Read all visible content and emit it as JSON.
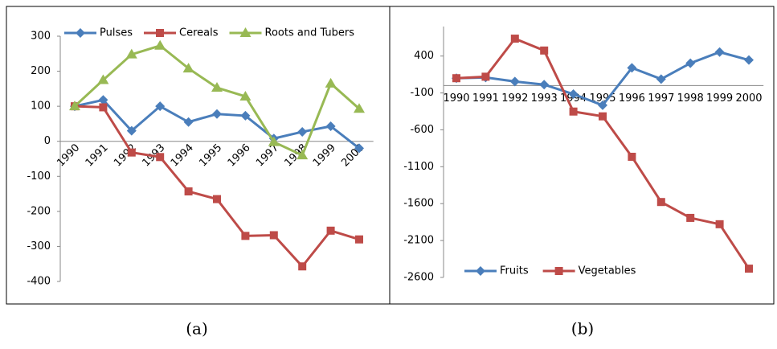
{
  "chart_data": [
    {
      "type": "line",
      "caption": "(a)",
      "categories": [
        "1990",
        "1991",
        "1992",
        "1993",
        "1994",
        "1995",
        "1996",
        "1997",
        "1998",
        "1999",
        "2000"
      ],
      "series": [
        {
          "name": "Pulses",
          "color": "#4a7ebb",
          "marker": "diamond",
          "values": [
            100,
            118,
            30,
            100,
            55,
            78,
            73,
            8,
            27,
            43,
            -20
          ]
        },
        {
          "name": "Cereals",
          "color": "#be4b48",
          "marker": "square",
          "values": [
            100,
            97,
            -32,
            -45,
            -143,
            -165,
            -270,
            -268,
            -357,
            -255,
            -280
          ]
        },
        {
          "name": "Roots and Tubers",
          "color": "#98b954",
          "marker": "triangle",
          "values": [
            100,
            175,
            248,
            273,
            208,
            153,
            128,
            -2,
            -40,
            165,
            93
          ]
        }
      ],
      "ylim": [
        -400,
        300
      ],
      "yticks": [
        -400,
        -300,
        -200,
        -100,
        0,
        100,
        200,
        300
      ],
      "grid": false,
      "legend": "top"
    },
    {
      "type": "line",
      "caption": "(b)",
      "categories": [
        "1990",
        "1991",
        "1992",
        "1993",
        "1994",
        "1995",
        "1996",
        "1997",
        "1998",
        "1999",
        "2000"
      ],
      "series": [
        {
          "name": "Fruits",
          "color": "#4a7ebb",
          "marker": "diamond",
          "values": [
            100,
            110,
            55,
            13,
            -116,
            -267,
            240,
            88,
            303,
            454,
            346
          ]
        },
        {
          "name": "Vegetables",
          "color": "#be4b48",
          "marker": "square",
          "values": [
            100,
            120,
            636,
            475,
            -352,
            -417,
            -965,
            -1578,
            -1793,
            -1879,
            -2481
          ]
        }
      ],
      "ylim": [
        -2600,
        800
      ],
      "yticks": [
        -2600,
        -2100,
        -1600,
        -1100,
        -600,
        -100,
        400
      ],
      "grid": false,
      "legend": "bottom-left"
    }
  ]
}
